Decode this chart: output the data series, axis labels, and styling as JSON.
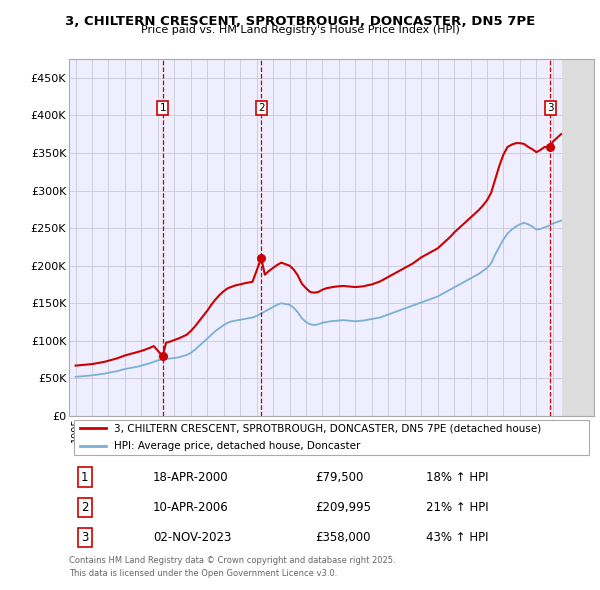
{
  "title": "3, CHILTERN CRESCENT, SPROTBROUGH, DONCASTER, DN5 7PE",
  "subtitle": "Price paid vs. HM Land Registry's House Price Index (HPI)",
  "ylim": [
    0,
    475000
  ],
  "yticks": [
    0,
    50000,
    100000,
    150000,
    200000,
    250000,
    300000,
    350000,
    400000,
    450000
  ],
  "ytick_labels": [
    "£0",
    "£50K",
    "£100K",
    "£150K",
    "£200K",
    "£250K",
    "£300K",
    "£350K",
    "£400K",
    "£450K"
  ],
  "xlim_start": 1994.6,
  "xlim_end": 2026.5,
  "red_line_color": "#cc0000",
  "blue_line_color": "#7ab0d4",
  "grid_color": "#c8c8d8",
  "bg_color": "#ffffff",
  "plot_bg_color": "#eeeeff",
  "purchases": [
    {
      "num": 1,
      "date": "18-APR-2000",
      "year": 2000.29,
      "price": 79500,
      "pct": "18%",
      "dir": "↑"
    },
    {
      "num": 2,
      "date": "10-APR-2006",
      "year": 2006.28,
      "price": 209995,
      "pct": "21%",
      "dir": "↑"
    },
    {
      "num": 3,
      "date": "02-NOV-2023",
      "year": 2023.84,
      "price": 358000,
      "pct": "43%",
      "dir": "↑"
    }
  ],
  "legend_label_red": "3, CHILTERN CRESCENT, SPROTBROUGH, DONCASTER, DN5 7PE (detached house)",
  "legend_label_blue": "HPI: Average price, detached house, Doncaster",
  "footer": "Contains HM Land Registry data © Crown copyright and database right 2025.\nThis data is licensed under the Open Government Licence v3.0.",
  "hpi_years": [
    1995.0,
    1995.25,
    1995.5,
    1995.75,
    1996.0,
    1996.25,
    1996.5,
    1996.75,
    1997.0,
    1997.25,
    1997.5,
    1997.75,
    1998.0,
    1998.25,
    1998.5,
    1998.75,
    1999.0,
    1999.25,
    1999.5,
    1999.75,
    2000.0,
    2000.25,
    2000.5,
    2000.75,
    2001.0,
    2001.25,
    2001.5,
    2001.75,
    2002.0,
    2002.25,
    2002.5,
    2002.75,
    2003.0,
    2003.25,
    2003.5,
    2003.75,
    2004.0,
    2004.25,
    2004.5,
    2004.75,
    2005.0,
    2005.25,
    2005.5,
    2005.75,
    2006.0,
    2006.25,
    2006.5,
    2006.75,
    2007.0,
    2007.25,
    2007.5,
    2007.75,
    2008.0,
    2008.25,
    2008.5,
    2008.75,
    2009.0,
    2009.25,
    2009.5,
    2009.75,
    2010.0,
    2010.25,
    2010.5,
    2010.75,
    2011.0,
    2011.25,
    2011.5,
    2011.75,
    2012.0,
    2012.25,
    2012.5,
    2012.75,
    2013.0,
    2013.25,
    2013.5,
    2013.75,
    2014.0,
    2014.25,
    2014.5,
    2014.75,
    2015.0,
    2015.25,
    2015.5,
    2015.75,
    2016.0,
    2016.25,
    2016.5,
    2016.75,
    2017.0,
    2017.25,
    2017.5,
    2017.75,
    2018.0,
    2018.25,
    2018.5,
    2018.75,
    2019.0,
    2019.25,
    2019.5,
    2019.75,
    2020.0,
    2020.25,
    2020.5,
    2020.75,
    2021.0,
    2021.25,
    2021.5,
    2021.75,
    2022.0,
    2022.25,
    2022.5,
    2022.75,
    2023.0,
    2023.25,
    2023.5,
    2023.75,
    2024.0,
    2024.25,
    2024.5
  ],
  "hpi_values": [
    52000,
    52500,
    53000,
    53500,
    54000,
    54800,
    55500,
    56200,
    57500,
    58500,
    59500,
    61000,
    62500,
    63500,
    64500,
    65500,
    67000,
    68500,
    70000,
    72000,
    74000,
    75000,
    76000,
    76500,
    77000,
    78000,
    79500,
    81000,
    84000,
    88000,
    93000,
    98000,
    103000,
    108000,
    113000,
    117000,
    121000,
    124000,
    126000,
    127000,
    128000,
    129000,
    130000,
    131000,
    133000,
    136000,
    139000,
    142000,
    145000,
    148000,
    150000,
    149000,
    148000,
    144000,
    138000,
    130000,
    125000,
    122000,
    121000,
    122000,
    124000,
    125000,
    126000,
    126500,
    127000,
    127500,
    127000,
    126500,
    126000,
    126500,
    127000,
    128000,
    129000,
    130000,
    131000,
    133000,
    135000,
    137000,
    139000,
    141000,
    143000,
    145000,
    147000,
    149000,
    151000,
    153000,
    155000,
    157000,
    159000,
    162000,
    165000,
    168000,
    171000,
    174000,
    177000,
    180000,
    183000,
    186000,
    189000,
    193000,
    197000,
    203000,
    215000,
    225000,
    235000,
    243000,
    248000,
    252000,
    255000,
    257000,
    255000,
    252000,
    248000,
    249000,
    251000,
    253000,
    256000,
    258000,
    260000
  ],
  "red_years": [
    1995.0,
    1995.25,
    1995.5,
    1995.75,
    1996.0,
    1996.25,
    1996.5,
    1996.75,
    1997.0,
    1997.25,
    1997.5,
    1997.75,
    1998.0,
    1998.25,
    1998.5,
    1998.75,
    1999.0,
    1999.25,
    1999.5,
    1999.75,
    2000.29,
    2000.5,
    2000.75,
    2001.0,
    2001.25,
    2001.5,
    2001.75,
    2002.0,
    2002.25,
    2002.5,
    2002.75,
    2003.0,
    2003.25,
    2003.5,
    2003.75,
    2004.0,
    2004.25,
    2004.5,
    2004.75,
    2005.0,
    2005.25,
    2005.5,
    2005.75,
    2006.28,
    2006.5,
    2006.75,
    2007.0,
    2007.25,
    2007.5,
    2007.75,
    2008.0,
    2008.25,
    2008.5,
    2008.75,
    2009.0,
    2009.25,
    2009.5,
    2009.75,
    2010.0,
    2010.25,
    2010.5,
    2010.75,
    2011.0,
    2011.25,
    2011.5,
    2011.75,
    2012.0,
    2012.25,
    2012.5,
    2012.75,
    2013.0,
    2013.25,
    2013.5,
    2013.75,
    2014.0,
    2014.25,
    2014.5,
    2014.75,
    2015.0,
    2015.25,
    2015.5,
    2015.75,
    2016.0,
    2016.25,
    2016.5,
    2016.75,
    2017.0,
    2017.25,
    2017.5,
    2017.75,
    2018.0,
    2018.25,
    2018.5,
    2018.75,
    2019.0,
    2019.25,
    2019.5,
    2019.75,
    2020.0,
    2020.25,
    2020.5,
    2020.75,
    2021.0,
    2021.25,
    2021.5,
    2021.75,
    2022.0,
    2022.25,
    2022.5,
    2022.75,
    2023.0,
    2023.25,
    2023.5,
    2023.84,
    2024.0,
    2024.25,
    2024.5
  ],
  "red_values": [
    67000,
    67500,
    68000,
    68500,
    69000,
    70000,
    71000,
    72000,
    73500,
    75000,
    76500,
    78500,
    80500,
    82000,
    83500,
    85000,
    86500,
    88500,
    90500,
    93000,
    79500,
    97500,
    99000,
    101000,
    103000,
    105500,
    108000,
    113000,
    119000,
    126000,
    133000,
    140000,
    148000,
    155000,
    161000,
    166000,
    170000,
    172000,
    174000,
    175000,
    176500,
    177500,
    178500,
    209995,
    188000,
    193000,
    197000,
    201000,
    204000,
    202000,
    200000,
    195000,
    187000,
    176000,
    170000,
    165000,
    164000,
    165000,
    168000,
    170000,
    171000,
    172000,
    172500,
    173000,
    172500,
    172000,
    171500,
    172000,
    172500,
    174000,
    175000,
    177000,
    179000,
    182000,
    185000,
    188000,
    191000,
    194000,
    197000,
    200000,
    203000,
    207000,
    211000,
    214000,
    217000,
    220000,
    223000,
    228000,
    233000,
    238000,
    244000,
    249000,
    254000,
    259000,
    264000,
    269000,
    274000,
    280000,
    287000,
    297000,
    315000,
    333000,
    348000,
    358000,
    361000,
    363000,
    363000,
    362000,
    358000,
    355000,
    351000,
    354000,
    358000,
    358000,
    365000,
    370000,
    375000
  ]
}
